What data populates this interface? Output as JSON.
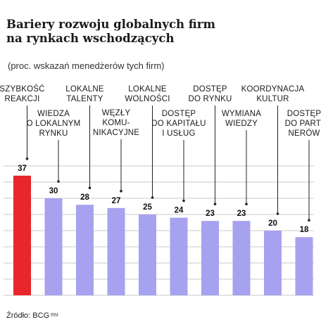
{
  "title": "Bariery rozwoju globalnych firm na rynkach wschodzących",
  "subtitle": "(proc. wskazań menedżerów tych firm)",
  "source": "Źródło: BCG",
  "credit": "RM",
  "colors": {
    "highlight": "#e8262b",
    "bar": "#a7a2ef",
    "grid": "#c9c9c9",
    "leader": "#222222"
  },
  "chart_data": {
    "type": "bar",
    "title": "Bariery rozwoju globalnych firm na rynkach wschodzących",
    "subtitle": "(proc. wskazań menedżerów tych firm)",
    "categories": [
      [
        "SZYBKOŚĆ",
        "REAKCJI"
      ],
      [
        "WIEDZA",
        "O LOKALNYM",
        "RYNKU"
      ],
      [
        "LOKALNE",
        "TALENTY"
      ],
      [
        "WĘZŁY",
        "KOMU-",
        "NIKACYJNE"
      ],
      [
        "LOKALNE",
        "WOLNOŚCI"
      ],
      [
        "DOSTĘP",
        "DO KAPITAŁU",
        "I USŁUG"
      ],
      [
        "DOSTĘP",
        "DO RYNKU"
      ],
      [
        "WYMIANA",
        "WIEDZY"
      ],
      [
        "KOORDYNACJA",
        "KULTUR"
      ],
      [
        "DOSTĘP",
        "DO PART-",
        "NERÓW"
      ]
    ],
    "values": [
      37,
      30,
      28,
      27,
      25,
      24,
      23,
      23,
      20,
      18
    ],
    "ylim": [
      0,
      40
    ],
    "grid": true,
    "xlabel": "",
    "ylabel": ""
  }
}
